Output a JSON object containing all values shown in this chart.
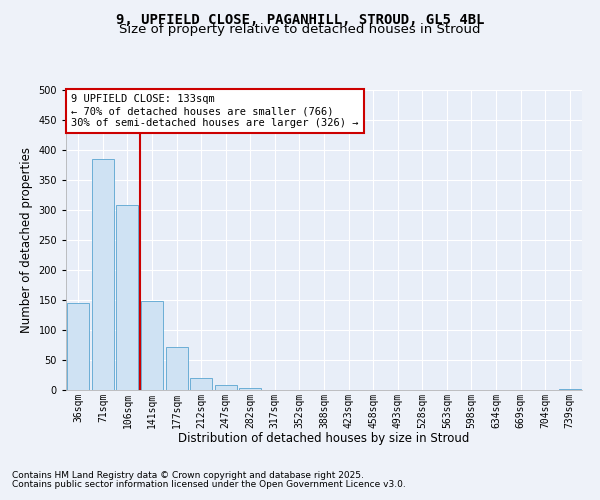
{
  "title_line1": "9, UPFIELD CLOSE, PAGANHILL, STROUD, GL5 4BL",
  "title_line2": "Size of property relative to detached houses in Stroud",
  "xlabel": "Distribution of detached houses by size in Stroud",
  "ylabel": "Number of detached properties",
  "footnote1": "Contains HM Land Registry data © Crown copyright and database right 2025.",
  "footnote2": "Contains public sector information licensed under the Open Government Licence v3.0.",
  "bar_labels": [
    "36sqm",
    "71sqm",
    "106sqm",
    "141sqm",
    "177sqm",
    "212sqm",
    "247sqm",
    "282sqm",
    "317sqm",
    "352sqm",
    "388sqm",
    "423sqm",
    "458sqm",
    "493sqm",
    "528sqm",
    "563sqm",
    "598sqm",
    "634sqm",
    "669sqm",
    "704sqm",
    "739sqm"
  ],
  "bar_values": [
    145,
    385,
    308,
    148,
    72,
    20,
    9,
    3,
    0,
    0,
    0,
    0,
    0,
    0,
    0,
    0,
    0,
    0,
    0,
    0,
    2
  ],
  "bar_color": "#cfe2f3",
  "bar_edge_color": "#6baed6",
  "red_line_x": 2.5,
  "annotation_text": "9 UPFIELD CLOSE: 133sqm\n← 70% of detached houses are smaller (766)\n30% of semi-detached houses are larger (326) →",
  "annotation_box_color": "#ffffff",
  "annotation_box_edge": "#cc0000",
  "ylim": [
    0,
    500
  ],
  "yticks": [
    0,
    50,
    100,
    150,
    200,
    250,
    300,
    350,
    400,
    450,
    500
  ],
  "background_color": "#eef2f9",
  "plot_bg_color": "#e8eef8",
  "grid_color": "#d0d8e8",
  "red_line_color": "#cc0000",
  "title_fontsize": 10,
  "subtitle_fontsize": 9.5,
  "axis_label_fontsize": 8.5,
  "tick_fontsize": 7,
  "annotation_fontsize": 7.5,
  "footnote_fontsize": 6.5
}
